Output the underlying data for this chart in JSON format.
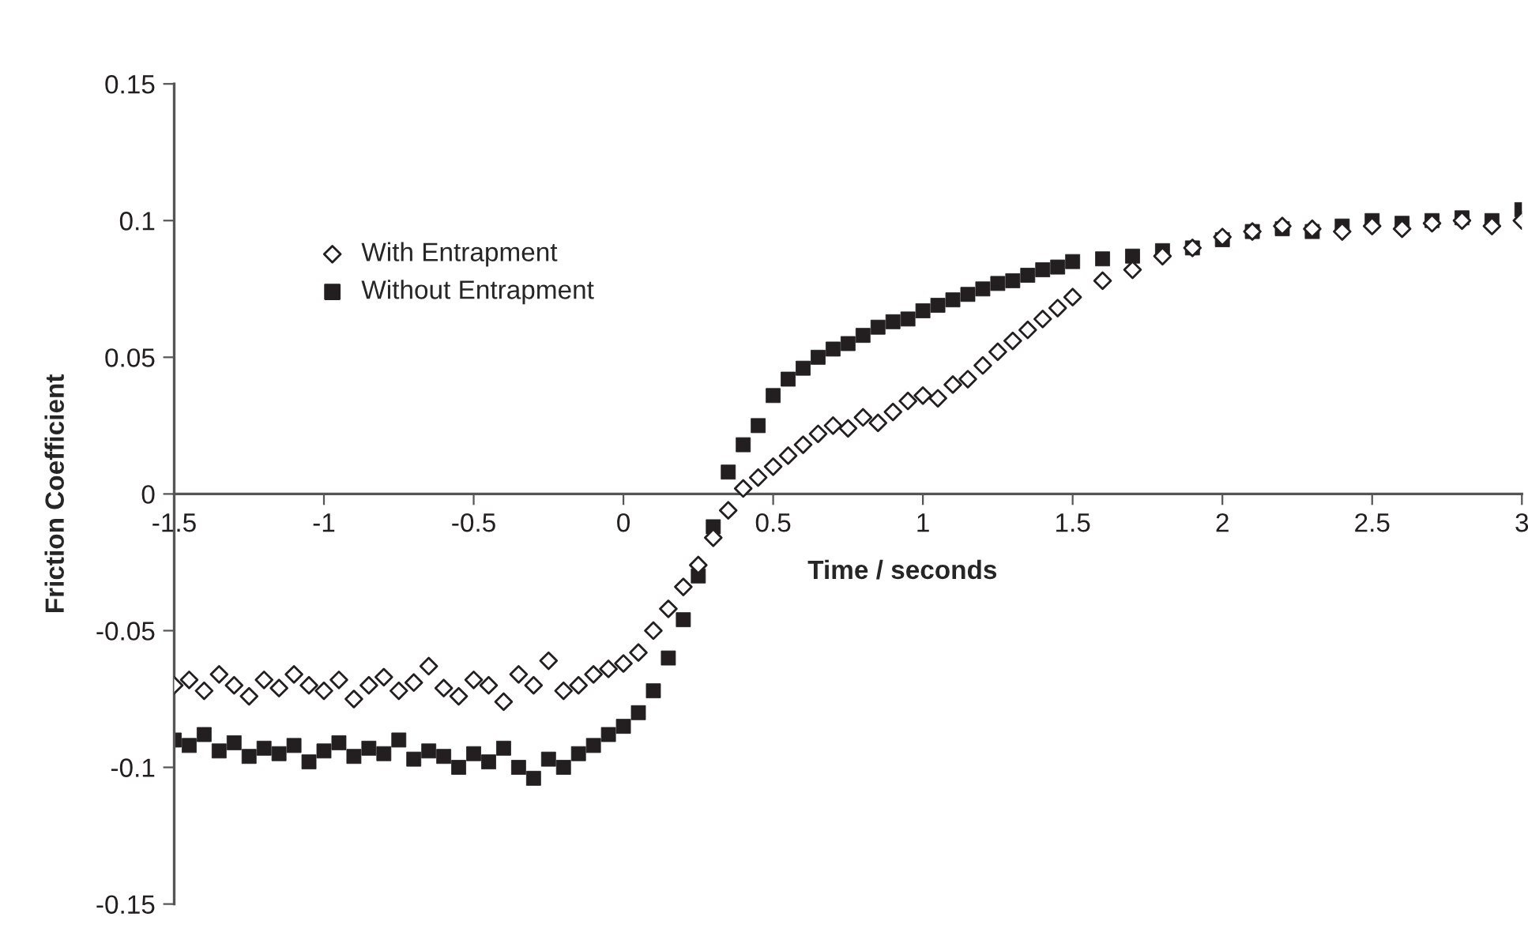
{
  "chart_data": {
    "type": "scatter",
    "xlabel": "Time / seconds",
    "ylabel": "Friction Coefficient",
    "xlim": [
      -1.5,
      3
    ],
    "xticks": [
      -1.5,
      -1,
      -0.5,
      0,
      0.5,
      1,
      1.5,
      2,
      2.5,
      3
    ],
    "ylim": [
      -0.15,
      0.15
    ],
    "yticks": [
      -0.15,
      -0.1,
      -0.05,
      0,
      0.05,
      0.1,
      0.15
    ],
    "grid": false,
    "legend": "top left",
    "series": [
      {
        "name": "With Entrapment",
        "color": "#231f20",
        "marker": "diamond",
        "x": [
          -1.5,
          -1.45,
          -1.4,
          -1.35,
          -1.3,
          -1.25,
          -1.2,
          -1.15,
          -1.1,
          -1.05,
          -1.0,
          -0.95,
          -0.9,
          -0.85,
          -0.8,
          -0.75,
          -0.7,
          -0.65,
          -0.6,
          -0.55,
          -0.5,
          -0.45,
          -0.4,
          -0.35,
          -0.3,
          -0.25,
          -0.2,
          -0.15,
          -0.1,
          -0.05,
          0.0,
          0.05,
          0.1,
          0.15,
          0.2,
          0.25,
          0.3,
          0.35,
          0.4,
          0.45,
          0.5,
          0.55,
          0.6,
          0.65,
          0.7,
          0.75,
          0.8,
          0.85,
          0.9,
          0.95,
          1.0,
          1.05,
          1.1,
          1.15,
          1.2,
          1.25,
          1.3,
          1.35,
          1.4,
          1.45,
          1.5,
          1.6,
          1.7,
          1.8,
          1.9,
          2.0,
          2.1,
          2.2,
          2.3,
          2.4,
          2.5,
          2.6,
          2.7,
          2.8,
          2.9,
          3.0
        ],
        "values": [
          -0.07,
          -0.068,
          -0.072,
          -0.066,
          -0.07,
          -0.074,
          -0.068,
          -0.071,
          -0.066,
          -0.07,
          -0.072,
          -0.068,
          -0.075,
          -0.07,
          -0.067,
          -0.072,
          -0.069,
          -0.063,
          -0.071,
          -0.074,
          -0.068,
          -0.07,
          -0.076,
          -0.066,
          -0.07,
          -0.061,
          -0.072,
          -0.07,
          -0.066,
          -0.064,
          -0.062,
          -0.058,
          -0.05,
          -0.042,
          -0.034,
          -0.026,
          -0.016,
          -0.006,
          0.002,
          0.006,
          0.01,
          0.014,
          0.018,
          0.022,
          0.025,
          0.024,
          0.028,
          0.026,
          0.03,
          0.034,
          0.036,
          0.035,
          0.04,
          0.042,
          0.047,
          0.052,
          0.056,
          0.06,
          0.064,
          0.068,
          0.072,
          0.078,
          0.082,
          0.087,
          0.09,
          0.094,
          0.096,
          0.098,
          0.097,
          0.096,
          0.098,
          0.097,
          0.099,
          0.1,
          0.098,
          0.1
        ]
      },
      {
        "name": "Without Entrapment",
        "color": "#231f20",
        "marker": "square",
        "x": [
          -1.5,
          -1.45,
          -1.4,
          -1.35,
          -1.3,
          -1.25,
          -1.2,
          -1.15,
          -1.1,
          -1.05,
          -1.0,
          -0.95,
          -0.9,
          -0.85,
          -0.8,
          -0.75,
          -0.7,
          -0.65,
          -0.6,
          -0.55,
          -0.5,
          -0.45,
          -0.4,
          -0.35,
          -0.3,
          -0.25,
          -0.2,
          -0.15,
          -0.1,
          -0.05,
          0.0,
          0.05,
          0.1,
          0.15,
          0.2,
          0.25,
          0.3,
          0.35,
          0.4,
          0.45,
          0.5,
          0.55,
          0.6,
          0.65,
          0.7,
          0.75,
          0.8,
          0.85,
          0.9,
          0.95,
          1.0,
          1.05,
          1.1,
          1.15,
          1.2,
          1.25,
          1.3,
          1.35,
          1.4,
          1.45,
          1.5,
          1.6,
          1.7,
          1.8,
          1.9,
          2.0,
          2.1,
          2.2,
          2.3,
          2.4,
          2.5,
          2.6,
          2.7,
          2.8,
          2.9,
          3.0
        ],
        "values": [
          -0.09,
          -0.092,
          -0.088,
          -0.094,
          -0.091,
          -0.096,
          -0.093,
          -0.095,
          -0.092,
          -0.098,
          -0.094,
          -0.091,
          -0.096,
          -0.093,
          -0.095,
          -0.09,
          -0.097,
          -0.094,
          -0.096,
          -0.1,
          -0.095,
          -0.098,
          -0.093,
          -0.1,
          -0.104,
          -0.097,
          -0.1,
          -0.095,
          -0.092,
          -0.088,
          -0.085,
          -0.08,
          -0.072,
          -0.06,
          -0.046,
          -0.03,
          -0.012,
          0.008,
          0.018,
          0.025,
          0.036,
          0.042,
          0.046,
          0.05,
          0.053,
          0.055,
          0.058,
          0.061,
          0.063,
          0.064,
          0.067,
          0.069,
          0.071,
          0.073,
          0.075,
          0.077,
          0.078,
          0.08,
          0.082,
          0.083,
          0.085,
          0.086,
          0.087,
          0.089,
          0.09,
          0.093,
          0.096,
          0.097,
          0.096,
          0.098,
          0.1,
          0.099,
          0.1,
          0.101,
          0.1,
          0.104
        ]
      }
    ]
  }
}
